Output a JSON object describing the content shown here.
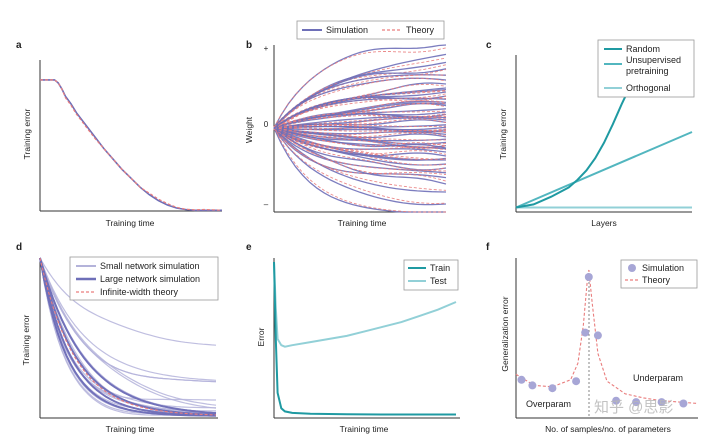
{
  "colors": {
    "sim": "#6e6fb8",
    "sim_light": "#b4b3da",
    "theory": "#e97d7d",
    "teal_dark": "#1f9aa2",
    "teal_mid": "#52b6bf",
    "teal_light": "#92d0d7",
    "axis": "#333333"
  },
  "watermark": "知乎 @思影",
  "chart_data": [
    {
      "panel": "a",
      "type": "line",
      "xlabel": "Training time",
      "ylabel": "Training error",
      "series": [
        {
          "name": "Simulation",
          "x": [
            0,
            0.02,
            0.04,
            0.06,
            0.08,
            0.1,
            0.12,
            0.14,
            0.17,
            0.2,
            0.25,
            0.3,
            0.35,
            0.4,
            0.45,
            0.5,
            0.55,
            0.6,
            0.65,
            0.7,
            0.75,
            0.8,
            0.85,
            0.9,
            0.95,
            1.0
          ],
          "y": [
            0.88,
            0.88,
            0.88,
            0.88,
            0.88,
            0.86,
            0.82,
            0.77,
            0.72,
            0.66,
            0.58,
            0.5,
            0.42,
            0.35,
            0.28,
            0.22,
            0.16,
            0.11,
            0.07,
            0.04,
            0.02,
            0.01,
            0.005,
            0.005,
            0.005,
            0.005
          ]
        },
        {
          "name": "Theory",
          "x": [
            0,
            0.02,
            0.04,
            0.06,
            0.08,
            0.1,
            0.12,
            0.14,
            0.17,
            0.2,
            0.25,
            0.3,
            0.35,
            0.4,
            0.45,
            0.5,
            0.55,
            0.6,
            0.65,
            0.7,
            0.75,
            0.8,
            0.85,
            0.9,
            0.95,
            1.0
          ],
          "y": [
            0.88,
            0.88,
            0.88,
            0.88,
            0.88,
            0.86,
            0.82,
            0.76,
            0.71,
            0.65,
            0.57,
            0.49,
            0.42,
            0.35,
            0.28,
            0.22,
            0.16,
            0.12,
            0.08,
            0.05,
            0.025,
            0.012,
            0.008,
            0.01,
            0.008,
            0.005
          ]
        }
      ]
    },
    {
      "panel": "b",
      "type": "line",
      "xlabel": "Training time",
      "ylabel": "Weight",
      "yticks": [
        "+",
        "0",
        "–"
      ],
      "legend": [
        "Simulation",
        "Theory"
      ],
      "trajectory_finals": [
        0.92,
        0.82,
        0.74,
        0.66,
        0.6,
        0.55,
        0.5,
        0.45,
        0.4,
        0.36,
        0.32,
        0.28,
        0.24,
        0.2,
        0.17,
        0.13,
        0.1,
        0.07,
        0.04,
        0.01,
        -0.02,
        -0.05,
        -0.08,
        -0.11,
        -0.14,
        -0.18,
        -0.22,
        -0.26,
        -0.3,
        -0.35,
        -0.4,
        -0.45,
        -0.5,
        -0.56,
        -0.62,
        -0.7,
        -0.8,
        -0.95,
        1.05,
        -1.1,
        0.3,
        -0.25,
        0.48,
        -0.38
      ]
    },
    {
      "panel": "c",
      "type": "line",
      "xlabel": "Layers",
      "ylabel": "Training error",
      "series": [
        {
          "name": "Random",
          "x": [
            0,
            0.1,
            0.2,
            0.3,
            0.35,
            0.4,
            0.45,
            0.5,
            0.55,
            0.6,
            0.65,
            0.7,
            0.75,
            0.78
          ],
          "y": [
            0.01,
            0.03,
            0.08,
            0.14,
            0.19,
            0.25,
            0.33,
            0.43,
            0.55,
            0.68,
            0.8,
            0.9,
            0.97,
            1.0
          ]
        },
        {
          "name": "Unsupervised pretraining",
          "x": [
            0,
            1.0
          ],
          "y": [
            0.01,
            0.5
          ]
        },
        {
          "name": "Orthogonal",
          "x": [
            0,
            1.0
          ],
          "y": [
            0.01,
            0.01
          ]
        }
      ]
    },
    {
      "panel": "d",
      "type": "line",
      "xlabel": "Training time",
      "ylabel": "Training error",
      "legend": [
        "Small network simulation",
        "Large network simulation",
        "Infinite-width theory"
      ],
      "small_network_plateaus": [
        0.42,
        0.21,
        0.21,
        0.02,
        0.02,
        0.01,
        0.0,
        0.0,
        0.21,
        0.05,
        0.0,
        0.1,
        0.02,
        0.0,
        0.01,
        0.03,
        0.0,
        0.0
      ],
      "large_network_plateaus": [
        0.0,
        0.0,
        0.0,
        0.0,
        0.0,
        0.0,
        0.0,
        0.0
      ]
    },
    {
      "panel": "e",
      "type": "line",
      "xlabel": "Training time",
      "ylabel": "Error",
      "series": [
        {
          "name": "Train",
          "x": [
            0,
            0.01,
            0.02,
            0.04,
            0.06,
            0.1,
            0.2,
            0.4,
            0.6,
            0.8,
            1.0
          ],
          "y": [
            1.0,
            0.5,
            0.15,
            0.05,
            0.03,
            0.02,
            0.015,
            0.012,
            0.01,
            0.01,
            0.01
          ]
        },
        {
          "name": "Test",
          "x": [
            0,
            0.01,
            0.02,
            0.04,
            0.06,
            0.1,
            0.2,
            0.3,
            0.4,
            0.5,
            0.6,
            0.7,
            0.8,
            0.9,
            1.0
          ],
          "y": [
            1.0,
            0.7,
            0.5,
            0.46,
            0.45,
            0.46,
            0.48,
            0.5,
            0.52,
            0.55,
            0.58,
            0.61,
            0.65,
            0.69,
            0.74
          ]
        }
      ]
    },
    {
      "panel": "f",
      "type": "scatter",
      "xlabel": "No. of samples/no. of parameters",
      "ylabel": "Generalization error",
      "annotations": [
        "Overparam",
        "Underparam"
      ],
      "series": [
        {
          "name": "Simulation",
          "x": [
            0.03,
            0.09,
            0.2,
            0.33,
            0.38,
            0.4,
            0.45,
            0.55,
            0.66,
            0.8,
            0.92
          ],
          "y": [
            0.26,
            0.22,
            0.2,
            0.25,
            0.6,
            1.0,
            0.58,
            0.11,
            0.1,
            0.1,
            0.09
          ]
        },
        {
          "name": "Theory",
          "x": [
            0.0,
            0.1,
            0.2,
            0.3,
            0.34,
            0.37,
            0.39,
            0.4,
            0.42,
            0.45,
            0.5,
            0.6,
            0.7,
            0.8,
            0.9,
            1.0
          ],
          "y": [
            0.3,
            0.22,
            0.21,
            0.26,
            0.38,
            0.65,
            0.95,
            1.05,
            0.8,
            0.45,
            0.25,
            0.16,
            0.13,
            0.11,
            0.1,
            0.09
          ]
        }
      ]
    }
  ]
}
